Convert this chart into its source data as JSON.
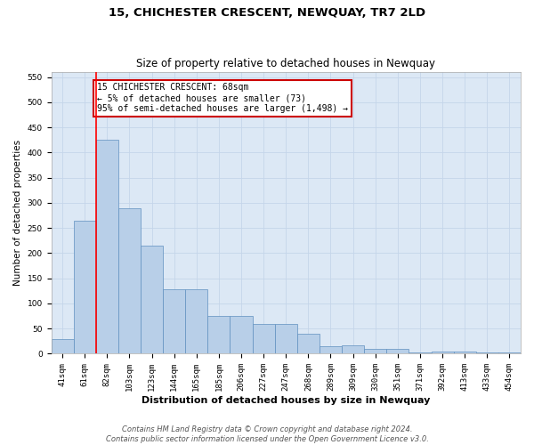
{
  "title": "15, CHICHESTER CRESCENT, NEWQUAY, TR7 2LD",
  "subtitle": "Size of property relative to detached houses in Newquay",
  "xlabel": "Distribution of detached houses by size in Newquay",
  "ylabel": "Number of detached properties",
  "categories": [
    "41sqm",
    "61sqm",
    "82sqm",
    "103sqm",
    "123sqm",
    "144sqm",
    "165sqm",
    "185sqm",
    "206sqm",
    "227sqm",
    "247sqm",
    "268sqm",
    "289sqm",
    "309sqm",
    "330sqm",
    "351sqm",
    "371sqm",
    "392sqm",
    "413sqm",
    "433sqm",
    "454sqm"
  ],
  "values": [
    30,
    265,
    425,
    290,
    215,
    128,
    128,
    75,
    75,
    60,
    60,
    40,
    15,
    17,
    9,
    9,
    3,
    4,
    4,
    2,
    2
  ],
  "bar_color": "#b8cfe8",
  "bar_edge_color": "#6090c0",
  "red_line_x": 1.5,
  "annotation_text": "15 CHICHESTER CRESCENT: 68sqm\n← 5% of detached houses are smaller (73)\n95% of semi-detached houses are larger (1,498) →",
  "annotation_box_color": "#ffffff",
  "annotation_box_edge_color": "#cc0000",
  "ylim": [
    0,
    560
  ],
  "yticks": [
    0,
    50,
    100,
    150,
    200,
    250,
    300,
    350,
    400,
    450,
    500,
    550
  ],
  "footer": "Contains HM Land Registry data © Crown copyright and database right 2024.\nContains public sector information licensed under the Open Government Licence v3.0.",
  "grid_color": "#c5d5ea",
  "background_color": "#dce8f5",
  "title_fontsize": 9.5,
  "subtitle_fontsize": 8.5,
  "tick_fontsize": 6.5,
  "xlabel_fontsize": 8,
  "ylabel_fontsize": 7.5,
  "annotation_fontsize": 7,
  "footer_fontsize": 6
}
